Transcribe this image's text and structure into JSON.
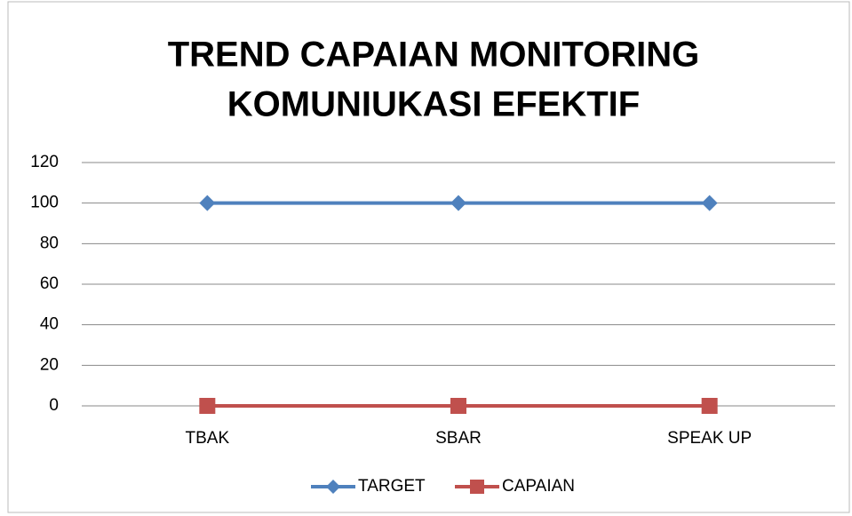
{
  "chart_data": {
    "type": "line",
    "title": [
      "TREND CAPAIAN MONITORING",
      "KOMUNIUKASI EFEKTIF"
    ],
    "categories": [
      "TBAK",
      "SBAR",
      "SPEAK UP"
    ],
    "series": [
      {
        "name": "TARGET",
        "color": "#4f81bd",
        "marker": "diamond",
        "values": [
          100,
          100,
          100
        ]
      },
      {
        "name": "CAPAIAN",
        "color": "#c0504d",
        "marker": "square",
        "values": [
          0,
          0,
          0
        ]
      }
    ],
    "ylim": [
      0,
      120
    ],
    "yticks": [
      0,
      20,
      40,
      60,
      80,
      100,
      120
    ],
    "grid": true,
    "legend": "bottom"
  }
}
